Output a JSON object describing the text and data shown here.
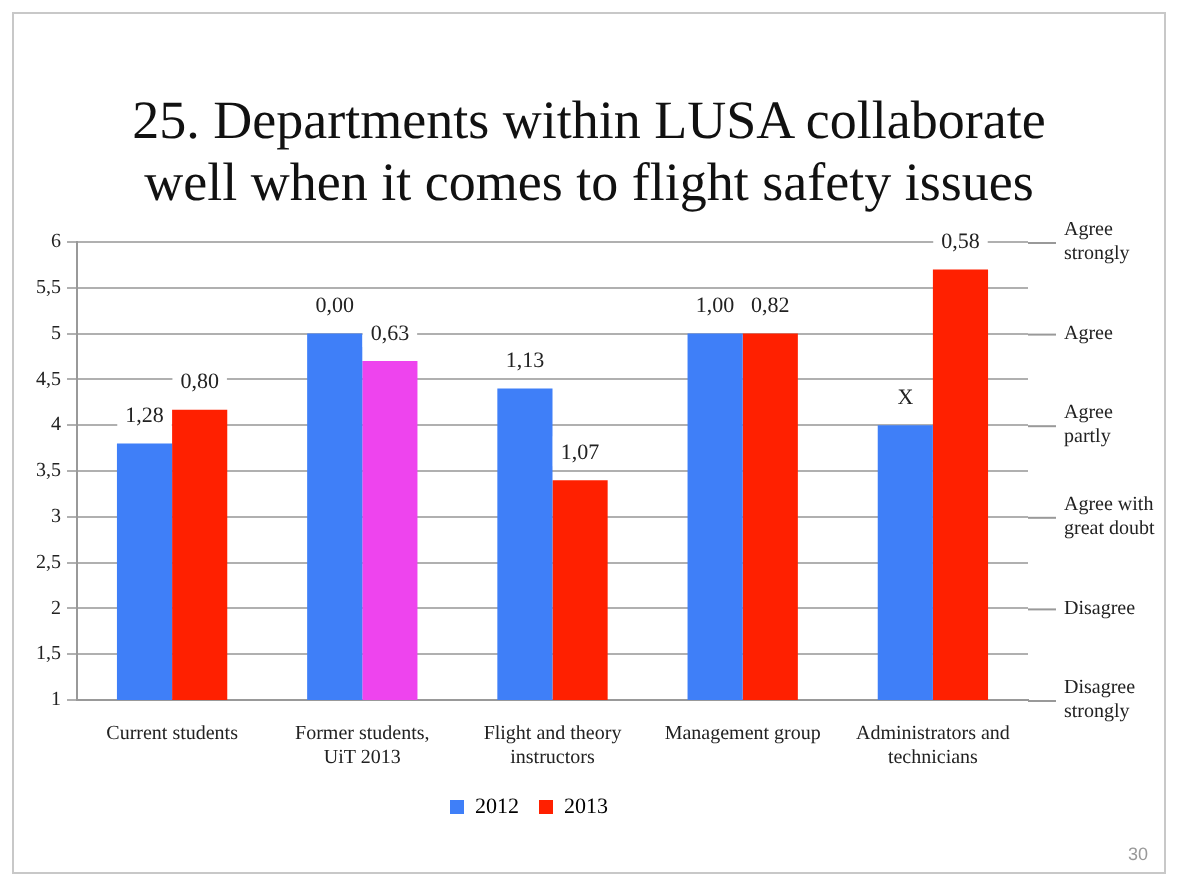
{
  "chart_data": {
    "type": "bar",
    "title": "25. Departments within LUSA collaborate well when it comes to flight safety issues",
    "categories": [
      "Current students",
      "Former students, UiT 2013",
      "Flight and theory instructors",
      "Management group",
      "Administrators and technicians"
    ],
    "series": [
      {
        "name": "2012",
        "color": "#3f7ff8",
        "values": [
          3.8,
          5.0,
          4.4,
          5.0,
          4.0
        ]
      },
      {
        "name": "2013",
        "color": "#ff2000",
        "colors": [
          "#ff2000",
          "#ee44ee",
          "#ff2000",
          "#ff2000",
          "#ff2000"
        ],
        "values": [
          4.17,
          4.7,
          3.4,
          5.0,
          5.7
        ]
      }
    ],
    "ylim": [
      1,
      6
    ],
    "yticks": [
      1,
      {
        "value": 1.5,
        "label": "1,5"
      },
      2,
      {
        "value": 2.5,
        "label": "2,5"
      },
      3,
      {
        "value": 3.5,
        "label": "3,5"
      },
      4,
      {
        "value": 4.5,
        "label": "4,5"
      },
      5,
      {
        "value": 5.5,
        "label": "5,5"
      },
      6
    ],
    "grid": "y",
    "legend": "bottom",
    "annotations": [
      {
        "text": "1,28",
        "x": "Current students",
        "y": 3.8
      },
      {
        "text": "0,80",
        "x": "Current students",
        "y": 4.17
      },
      {
        "text": "0,00",
        "x": "Former students, UiT 2013",
        "y": 5.0
      },
      {
        "text": "0,63",
        "x": "Former students, UiT 2013",
        "y": 4.7
      },
      {
        "text": "1,13",
        "x": "Flight and theory instructors",
        "y": 4.4
      },
      {
        "text": "1,07",
        "x": "Flight and theory instructors",
        "y": 3.4
      },
      {
        "text": "1,00",
        "x": "Management group",
        "y": 5.0
      },
      {
        "text": "0,82",
        "x": "Management group",
        "y": 5.0
      },
      {
        "text": "X",
        "x": "Administrators and technicians",
        "y": 4.0
      },
      {
        "text": "0,58",
        "x": "Administrators and technicians",
        "y": 5.7
      },
      "Agree strongly",
      "Agree",
      "Agree partly",
      "Agree with great doubt",
      "Disagree",
      "Disagree strongly",
      "30"
    ]
  }
}
